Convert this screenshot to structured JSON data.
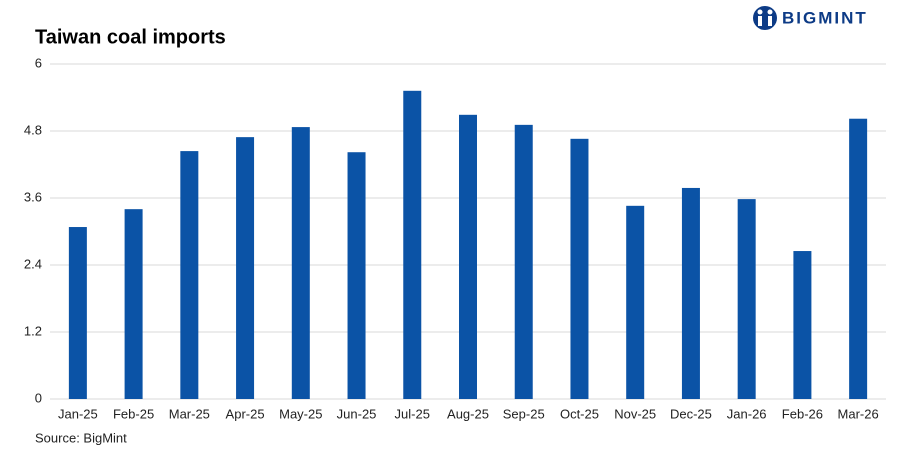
{
  "chart_data": {
    "type": "bar",
    "title": "Taiwan coal imports",
    "logo": "BIGMINT",
    "source": "Source: BigMint",
    "categories": [
      "Jan-25",
      "Feb-25",
      "Mar-25",
      "Apr-25",
      "May-25",
      "Jun-25",
      "Jul-25",
      "Aug-25",
      "Sep-25",
      "Oct-25",
      "Nov-25",
      "Dec-25",
      "Jan-26",
      "Feb-26",
      "Mar-26"
    ],
    "values": [
      3.08,
      3.4,
      4.44,
      4.69,
      4.87,
      4.42,
      5.52,
      5.09,
      4.91,
      4.66,
      3.46,
      3.78,
      3.58,
      2.65,
      5.02
    ],
    "color": "#0b53a6",
    "ylim": [
      0,
      6
    ],
    "yticks": [
      0,
      1.2,
      2.4,
      3.6,
      4.8,
      6
    ],
    "grid": true
  }
}
